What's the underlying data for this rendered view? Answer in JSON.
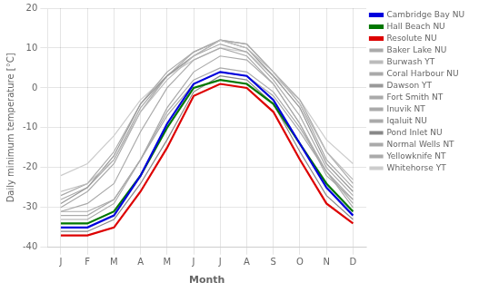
{
  "chart_data": {
    "type": "line",
    "categories": [
      "J",
      "F",
      "M",
      "A",
      "M",
      "J",
      "J",
      "A",
      "S",
      "O",
      "N",
      "D"
    ],
    "xlabel": "Month",
    "ylabel": "Daily minimum temperature [°C]",
    "ylim": [
      -40,
      20
    ],
    "yticks": [
      -40,
      -30,
      -20,
      -10,
      0,
      10,
      20
    ],
    "grid": true,
    "legend": "right",
    "series": [
      {
        "name": "Baker Lake NU",
        "color": "#aaaaaa",
        "values": [
          -33,
          -33,
          -29,
          -18,
          -5,
          4,
          8,
          7,
          1,
          -9,
          -21,
          -30
        ]
      },
      {
        "name": "Burwash YT",
        "color": "#bbbbbb",
        "values": [
          -26,
          -24,
          -18,
          -6,
          2,
          8,
          12,
          10,
          4,
          -4,
          -16,
          -23
        ]
      },
      {
        "name": "Cambridge Bay NU",
        "color": "#0000dd",
        "values": [
          -35,
          -35,
          -32,
          -22,
          -9,
          1,
          4,
          3,
          -3,
          -14,
          -25,
          -32
        ]
      },
      {
        "name": "Coral Harbour NU",
        "color": "#aaaaaa",
        "values": [
          -32,
          -32,
          -28,
          -18,
          -6,
          2,
          5,
          4,
          -1,
          -10,
          -21,
          -29
        ]
      },
      {
        "name": "Dawson YT",
        "color": "#999999",
        "values": [
          -29,
          -25,
          -17,
          -4,
          3,
          8,
          12,
          10,
          3,
          -5,
          -19,
          -26
        ]
      },
      {
        "name": "Fort Smith NT",
        "color": "#aaaaaa",
        "values": [
          -27,
          -24,
          -16,
          -4,
          4,
          9,
          12,
          11,
          4,
          -3,
          -16,
          -24
        ]
      },
      {
        "name": "Hall Beach NU",
        "color": "#007700",
        "values": [
          -34,
          -34,
          -31,
          -22,
          -10,
          0,
          2,
          1,
          -4,
          -14,
          -24,
          -31
        ]
      },
      {
        "name": "Inuvik NT",
        "color": "#aaaaaa",
        "values": [
          -31,
          -29,
          -24,
          -11,
          0,
          7,
          10,
          8,
          1,
          -9,
          -22,
          -28
        ]
      },
      {
        "name": "Iqaluit NU",
        "color": "#aaaaaa",
        "values": [
          -31,
          -31,
          -28,
          -18,
          -7,
          1,
          4,
          3,
          -2,
          -11,
          -21,
          -28
        ]
      },
      {
        "name": "Pond Inlet NU",
        "color": "#888888",
        "values": [
          -36,
          -36,
          -33,
          -24,
          -13,
          -1,
          3,
          2,
          -4,
          -16,
          -27,
          -33
        ]
      },
      {
        "name": "Normal Wells NT",
        "color": "#aaaaaa",
        "values": [
          -30,
          -26,
          -19,
          -6,
          3,
          8,
          11,
          9,
          2,
          -7,
          -20,
          -27
        ]
      },
      {
        "name": "Resolute NU",
        "color": "#dd0000",
        "values": [
          -37,
          -37,
          -35,
          -26,
          -15,
          -2,
          1,
          0,
          -6,
          -18,
          -29,
          -34
        ]
      },
      {
        "name": "Yellowknife NT",
        "color": "#aaaaaa",
        "values": [
          -28,
          -25,
          -18,
          -5,
          3,
          9,
          12,
          11,
          4,
          -4,
          -18,
          -25
        ]
      },
      {
        "name": "Whitehorse YT",
        "color": "#cccccc",
        "values": [
          -22,
          -19,
          -12,
          -3,
          3,
          7,
          10,
          9,
          3,
          -3,
          -13,
          -19
        ]
      }
    ]
  }
}
